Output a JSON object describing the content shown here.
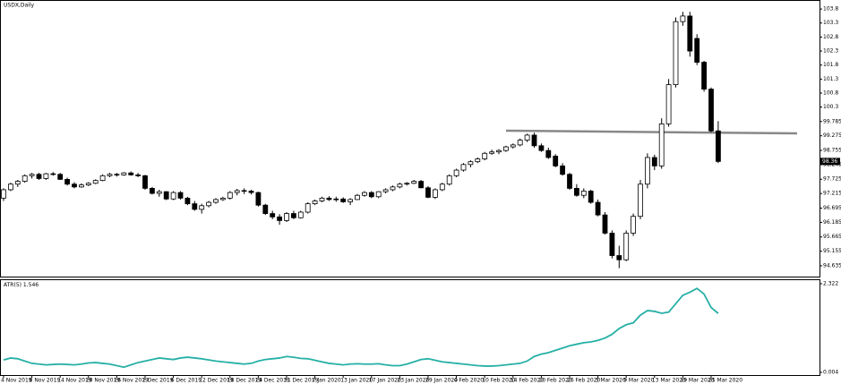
{
  "chart_data": [
    {
      "type": "candlestick",
      "title": "USDX,Daily",
      "up_color": "#ffffff",
      "down_color": "#000000",
      "ylim": [
        94.25,
        104.09
      ],
      "yticks": [
        94.635,
        95.155,
        95.665,
        96.185,
        96.695,
        97.215,
        97.725,
        98.245,
        98.755,
        99.275,
        99.785,
        100.3,
        100.8,
        101.3,
        101.8,
        102.3,
        102.8,
        103.3,
        103.8
      ],
      "categories": [
        "4 Nov 2019",
        null,
        null,
        null,
        "8 Nov 2019",
        null,
        null,
        null,
        "14 Nov 2019",
        null,
        null,
        null,
        "20 Nov 2019",
        null,
        null,
        null,
        "26 Nov 2019",
        null,
        null,
        null,
        "2 Dec 2019",
        null,
        null,
        null,
        "6 Dec 2019",
        null,
        null,
        null,
        "12 Dec 2019",
        null,
        null,
        null,
        "18 Dec 2019",
        null,
        null,
        null,
        "24 Dec 2019",
        null,
        null,
        null,
        "31 Dec 2019",
        null,
        null,
        null,
        "7 Jan 2020",
        null,
        null,
        null,
        "13 Jan 2020",
        null,
        null,
        null,
        "17 Jan 2020",
        null,
        null,
        null,
        "23 Jan 2020",
        null,
        null,
        null,
        "29 Jan 2020",
        null,
        null,
        null,
        "4 Feb 2020",
        null,
        null,
        null,
        "10 Feb 2020",
        null,
        null,
        null,
        "14 Feb 2020",
        null,
        null,
        null,
        "20 Feb 2020",
        null,
        null,
        null,
        "26 Feb 2020",
        null,
        null,
        null,
        "3 Mar 2020",
        null,
        null,
        null,
        "9 Mar 2020",
        null,
        null,
        null,
        "13 Mar 2020",
        null,
        null,
        null,
        "19 Mar 2020",
        null,
        null,
        null,
        "25 Mar 2020",
        null
      ],
      "open": [
        97.05,
        97.35,
        97.55,
        97.65,
        97.85,
        97.9,
        97.75,
        97.92,
        97.9,
        97.72,
        97.55,
        97.45,
        97.52,
        97.58,
        97.68,
        97.85,
        97.9,
        97.88,
        97.95,
        97.88,
        97.85,
        97.4,
        97.22,
        97.28,
        97.02,
        97.25,
        97.05,
        96.85,
        96.65,
        96.78,
        96.9,
        97.0,
        97.05,
        97.25,
        97.32,
        97.3,
        97.25,
        96.8,
        96.5,
        96.38,
        96.25,
        96.5,
        96.35,
        96.55,
        96.85,
        96.95,
        97.05,
        97.0,
        97.02,
        96.92,
        97.0,
        97.15,
        97.25,
        97.1,
        97.28,
        97.35,
        97.45,
        97.55,
        97.58,
        97.65,
        97.42,
        97.08,
        97.35,
        97.55,
        97.85,
        98.05,
        98.25,
        98.35,
        98.45,
        98.65,
        98.7,
        98.75,
        98.88,
        98.95,
        99.12,
        99.3,
        98.92,
        98.75,
        98.55,
        98.2,
        97.9,
        97.4,
        97.15,
        97.3,
        96.9,
        96.45,
        95.8,
        95.0,
        94.85,
        95.8,
        96.4,
        97.55,
        98.5,
        98.2,
        99.7,
        101.1,
        103.35,
        103.55,
        102.75,
        101.9,
        100.94,
        99.45
      ],
      "high": [
        97.4,
        97.6,
        97.7,
        97.9,
        97.95,
        97.95,
        97.95,
        97.98,
        97.95,
        97.78,
        97.62,
        97.58,
        97.62,
        97.72,
        97.9,
        97.95,
        97.95,
        97.98,
        98.0,
        97.95,
        97.88,
        97.45,
        97.35,
        97.3,
        97.3,
        97.3,
        97.1,
        96.95,
        96.85,
        96.95,
        97.05,
        97.1,
        97.3,
        97.38,
        97.4,
        97.35,
        97.28,
        96.85,
        96.6,
        96.48,
        96.55,
        96.6,
        96.6,
        96.9,
        97.0,
        97.1,
        97.12,
        97.1,
        97.08,
        97.05,
        97.2,
        97.3,
        97.3,
        97.3,
        97.4,
        97.5,
        97.6,
        97.62,
        97.7,
        97.7,
        97.48,
        97.4,
        97.6,
        97.9,
        98.1,
        98.3,
        98.4,
        98.5,
        98.7,
        98.78,
        98.8,
        98.92,
        99.0,
        99.18,
        99.35,
        99.38,
        99.0,
        98.85,
        98.62,
        98.3,
        97.95,
        97.55,
        97.4,
        97.35,
        97.0,
        96.55,
        95.9,
        95.35,
        95.9,
        96.5,
        97.7,
        98.65,
        98.6,
        99.9,
        101.3,
        103.5,
        103.7,
        103.7,
        102.9,
        101.95,
        101.0,
        99.8
      ],
      "low": [
        96.95,
        97.3,
        97.45,
        97.6,
        97.75,
        97.7,
        97.7,
        97.85,
        97.7,
        97.5,
        97.4,
        97.42,
        97.48,
        97.55,
        97.65,
        97.8,
        97.82,
        97.85,
        97.85,
        97.8,
        97.35,
        97.18,
        97.1,
        96.98,
        96.98,
        97.0,
        96.8,
        96.6,
        96.5,
        96.72,
        96.85,
        96.95,
        97.0,
        97.15,
        97.2,
        97.18,
        96.75,
        96.45,
        96.3,
        96.1,
        96.2,
        96.3,
        96.32,
        96.5,
        96.8,
        96.9,
        96.95,
        96.92,
        96.88,
        96.8,
        96.98,
        97.1,
        97.05,
        97.05,
        97.22,
        97.3,
        97.4,
        97.5,
        97.55,
        97.4,
        97.05,
        97.02,
        97.3,
        97.5,
        97.8,
        98.0,
        98.15,
        98.3,
        98.4,
        98.6,
        98.62,
        98.7,
        98.82,
        98.9,
        99.05,
        98.85,
        98.7,
        98.45,
        98.15,
        97.85,
        97.35,
        97.1,
        97.05,
        96.85,
        96.4,
        95.75,
        94.9,
        94.55,
        94.8,
        95.7,
        96.3,
        97.4,
        98.05,
        98.1,
        99.6,
        101.0,
        103.2,
        102.1,
        101.8,
        100.85,
        99.4,
        98.3
      ],
      "close": [
        97.35,
        97.55,
        97.65,
        97.85,
        97.9,
        97.75,
        97.92,
        97.9,
        97.72,
        97.55,
        97.45,
        97.52,
        97.58,
        97.68,
        97.85,
        97.9,
        97.88,
        97.95,
        97.88,
        97.85,
        97.4,
        97.22,
        97.28,
        97.02,
        97.25,
        97.05,
        96.85,
        96.65,
        96.78,
        96.9,
        97.0,
        97.05,
        97.25,
        97.32,
        97.3,
        97.25,
        96.8,
        96.5,
        96.38,
        96.25,
        96.5,
        96.35,
        96.55,
        96.85,
        96.95,
        97.05,
        97.0,
        97.02,
        96.92,
        97.0,
        97.15,
        97.25,
        97.1,
        97.28,
        97.35,
        97.45,
        97.55,
        97.58,
        97.65,
        97.42,
        97.08,
        97.35,
        97.55,
        97.85,
        98.05,
        98.25,
        98.35,
        98.45,
        98.65,
        98.7,
        98.75,
        98.88,
        98.95,
        99.12,
        99.3,
        98.92,
        98.75,
        98.5,
        98.2,
        97.9,
        97.4,
        97.15,
        97.3,
        96.9,
        96.45,
        95.8,
        95.0,
        94.85,
        95.8,
        96.4,
        97.55,
        98.5,
        98.2,
        99.7,
        101.1,
        103.35,
        103.55,
        102.3,
        101.9,
        100.94,
        99.45,
        98.36
      ]
    },
    {
      "type": "line",
      "name": "ATR(5)",
      "color": "#26b0a6",
      "ylim": [
        -0.066,
        2.415
      ],
      "yticks": [
        0.004,
        2.322
      ],
      "values": [
        0.33,
        0.38,
        0.36,
        0.3,
        0.24,
        0.22,
        0.2,
        0.21,
        0.22,
        0.21,
        0.2,
        0.22,
        0.25,
        0.26,
        0.24,
        0.22,
        0.18,
        0.14,
        0.2,
        0.26,
        0.3,
        0.34,
        0.38,
        0.36,
        0.34,
        0.38,
        0.4,
        0.38,
        0.36,
        0.33,
        0.3,
        0.28,
        0.26,
        0.24,
        0.22,
        0.24,
        0.3,
        0.34,
        0.36,
        0.38,
        0.42,
        0.4,
        0.37,
        0.36,
        0.32,
        0.28,
        0.24,
        0.22,
        0.2,
        0.22,
        0.23,
        0.22,
        0.22,
        0.23,
        0.2,
        0.18,
        0.18,
        0.22,
        0.28,
        0.34,
        0.36,
        0.32,
        0.28,
        0.26,
        0.24,
        0.22,
        0.2,
        0.18,
        0.17,
        0.17,
        0.18,
        0.2,
        0.22,
        0.24,
        0.3,
        0.42,
        0.48,
        0.52,
        0.58,
        0.64,
        0.7,
        0.74,
        0.78,
        0.8,
        0.84,
        0.9,
        1.0,
        1.15,
        1.25,
        1.3,
        1.5,
        1.62,
        1.6,
        1.55,
        1.58,
        1.8,
        2.02,
        2.1,
        2.2,
        2.05,
        1.7,
        1.546
      ]
    }
  ]
}
